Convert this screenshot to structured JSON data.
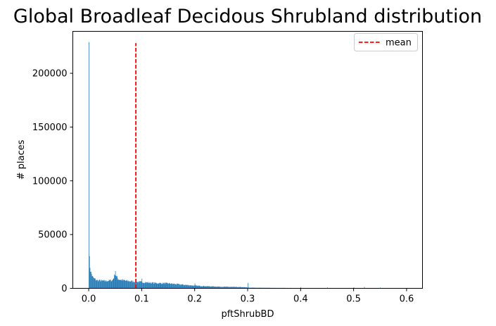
{
  "chart_data": {
    "type": "bar",
    "title": "Global Broadleaf Decidous Shrubland distribution",
    "xlabel": "pftShrubBD",
    "ylabel": "# places",
    "xlim": [
      -0.03,
      0.63
    ],
    "ylim": [
      0,
      239000
    ],
    "xticks": [
      0.0,
      0.1,
      0.2,
      0.3,
      0.4,
      0.5,
      0.6
    ],
    "xtick_labels": [
      "0.0",
      "0.1",
      "0.2",
      "0.3",
      "0.4",
      "0.5",
      "0.6"
    ],
    "yticks": [
      0,
      50000,
      100000,
      150000,
      200000
    ],
    "ytick_labels": [
      "0",
      "50000",
      "100000",
      "150000",
      "200000"
    ],
    "grid": false,
    "legend": {
      "position": "top-right",
      "entries": [
        {
          "label": "mean",
          "style": "dashed",
          "color": "#ff0000"
        }
      ]
    },
    "mean_line": {
      "x": 0.089,
      "y_top": 228000,
      "color": "#ff0000"
    },
    "bar_color": "#1f77b4",
    "bins": {
      "start": 0.0,
      "end": 0.6,
      "count": 600
    },
    "series": [
      {
        "values_profile_points": [
          [
            0.0,
            8000
          ],
          [
            0.001,
            30000
          ],
          [
            0.002,
            22000
          ],
          [
            0.004,
            15000
          ],
          [
            0.008,
            10000
          ],
          [
            0.015,
            7500
          ],
          [
            0.03,
            6800
          ],
          [
            0.045,
            7500
          ],
          [
            0.049,
            12000
          ],
          [
            0.05,
            16000
          ],
          [
            0.052,
            11000
          ],
          [
            0.056,
            8500
          ],
          [
            0.07,
            7000
          ],
          [
            0.1,
            5800
          ],
          [
            0.13,
            4800
          ],
          [
            0.15,
            4600
          ],
          [
            0.18,
            3300
          ],
          [
            0.2,
            2500
          ],
          [
            0.22,
            2000
          ],
          [
            0.25,
            1500
          ],
          [
            0.29,
            1100
          ],
          [
            0.305,
            600
          ],
          [
            0.35,
            400
          ],
          [
            0.4,
            280
          ],
          [
            0.45,
            180
          ],
          [
            0.5,
            130
          ],
          [
            0.55,
            90
          ],
          [
            0.6,
            60
          ]
        ],
        "spikes": [
          {
            "x": 0.0,
            "value": 229000
          },
          {
            "x": 0.001,
            "value": 30000
          },
          {
            "x": 0.05,
            "value": 16000
          },
          {
            "x": 0.1,
            "value": 9000
          },
          {
            "x": 0.2,
            "value": 4500
          },
          {
            "x": 0.3,
            "value": 5000
          },
          {
            "x": 0.4,
            "value": 1200
          },
          {
            "x": 0.45,
            "value": 900
          },
          {
            "x": 0.5,
            "value": 900
          },
          {
            "x": 0.52,
            "value": 1300
          },
          {
            "x": 0.55,
            "value": 800
          },
          {
            "x": 0.6,
            "value": 700
          }
        ]
      }
    ]
  }
}
